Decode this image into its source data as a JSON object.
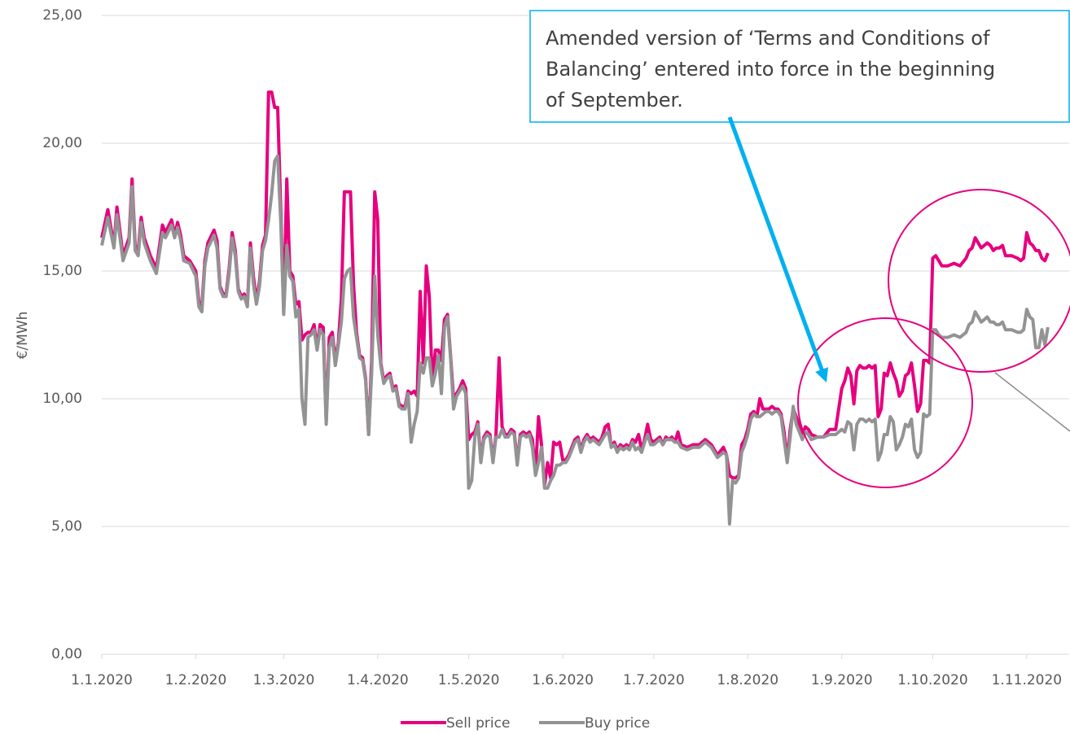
{
  "chart_data": {
    "type": "line",
    "y_label": "€/MWh",
    "annotation": [
      "Amended version of ‘Terms and Conditions of",
      "Balancing’ entered into force in the beginning",
      "of September."
    ],
    "ylim": [
      0,
      25
    ],
    "yticks": [
      {
        "value": 0,
        "label": "0,00"
      },
      {
        "value": 5,
        "label": "5,00"
      },
      {
        "value": 10,
        "label": "10,00"
      },
      {
        "value": 15,
        "label": "15,00"
      },
      {
        "value": 20,
        "label": "20,00"
      },
      {
        "value": 25,
        "label": "25,00"
      }
    ],
    "xlim": [
      "2020-01-01",
      "2020-11-15"
    ],
    "xticks": [
      {
        "value": "2020-01-01",
        "label": "1.1.2020"
      },
      {
        "value": "2020-02-01",
        "label": "1.2.2020"
      },
      {
        "value": "2020-03-01",
        "label": "1.3.2020"
      },
      {
        "value": "2020-04-01",
        "label": "1.4.2020"
      },
      {
        "value": "2020-05-01",
        "label": "1.5.2020"
      },
      {
        "value": "2020-06-01",
        "label": "1.6.2020"
      },
      {
        "value": "2020-07-01",
        "label": "1.7.2020"
      },
      {
        "value": "2020-08-01",
        "label": "1.8.2020"
      },
      {
        "value": "2020-09-01",
        "label": "1.9.2020"
      },
      {
        "value": "2020-10-01",
        "label": "1.10.2020"
      },
      {
        "value": "2020-11-01",
        "label": "1.11.2020"
      }
    ],
    "grid": true,
    "legend": "bottom",
    "x": [
      "2020-01-01",
      "2020-01-03",
      "2020-01-05",
      "2020-01-06",
      "2020-01-08",
      "2020-01-10",
      "2020-01-11",
      "2020-01-12",
      "2020-01-13",
      "2020-01-14",
      "2020-01-15",
      "2020-01-17",
      "2020-01-19",
      "2020-01-21",
      "2020-01-22",
      "2020-01-24",
      "2020-01-25",
      "2020-01-26",
      "2020-01-27",
      "2020-01-28",
      "2020-01-30",
      "2020-02-01",
      "2020-02-02",
      "2020-02-03",
      "2020-02-04",
      "2020-02-05",
      "2020-02-07",
      "2020-02-08",
      "2020-02-09",
      "2020-02-10",
      "2020-02-11",
      "2020-02-12",
      "2020-02-13",
      "2020-02-14",
      "2020-02-15",
      "2020-02-16",
      "2020-02-17",
      "2020-02-18",
      "2020-02-19",
      "2020-02-20",
      "2020-02-21",
      "2020-02-22",
      "2020-02-23",
      "2020-02-24",
      "2020-02-25",
      "2020-02-26",
      "2020-02-27",
      "2020-02-28",
      "2020-02-29",
      "2020-03-01",
      "2020-03-02",
      "2020-03-03",
      "2020-03-04",
      "2020-03-05",
      "2020-03-06",
      "2020-03-07",
      "2020-03-08",
      "2020-03-09",
      "2020-03-10",
      "2020-03-11",
      "2020-03-12",
      "2020-03-13",
      "2020-03-14",
      "2020-03-15",
      "2020-03-16",
      "2020-03-17",
      "2020-03-18",
      "2020-03-19",
      "2020-03-20",
      "2020-03-21",
      "2020-03-22",
      "2020-03-23",
      "2020-03-24",
      "2020-03-25",
      "2020-03-26",
      "2020-03-27",
      "2020-03-28",
      "2020-03-29",
      "2020-03-30",
      "2020-03-31",
      "2020-04-01",
      "2020-04-02",
      "2020-04-03",
      "2020-04-04",
      "2020-04-05",
      "2020-04-06",
      "2020-04-07",
      "2020-04-08",
      "2020-04-09",
      "2020-04-10",
      "2020-04-11",
      "2020-04-12",
      "2020-04-13",
      "2020-04-14",
      "2020-04-15",
      "2020-04-16",
      "2020-04-17",
      "2020-04-18",
      "2020-04-19",
      "2020-04-20",
      "2020-04-21",
      "2020-04-22",
      "2020-04-23",
      "2020-04-24",
      "2020-04-25",
      "2020-04-26",
      "2020-04-27",
      "2020-04-28",
      "2020-04-29",
      "2020-04-30",
      "2020-05-01",
      "2020-05-02",
      "2020-05-03",
      "2020-05-04",
      "2020-05-05",
      "2020-05-06",
      "2020-05-07",
      "2020-05-08",
      "2020-05-09",
      "2020-05-10",
      "2020-05-11",
      "2020-05-12",
      "2020-05-13",
      "2020-05-14",
      "2020-05-15",
      "2020-05-16",
      "2020-05-17",
      "2020-05-18",
      "2020-05-19",
      "2020-05-20",
      "2020-05-21",
      "2020-05-22",
      "2020-05-23",
      "2020-05-24",
      "2020-05-25",
      "2020-05-26",
      "2020-05-27",
      "2020-05-28",
      "2020-05-29",
      "2020-05-30",
      "2020-05-31",
      "2020-06-01",
      "2020-06-02",
      "2020-06-03",
      "2020-06-05",
      "2020-06-06",
      "2020-06-07",
      "2020-06-08",
      "2020-06-09",
      "2020-06-10",
      "2020-06-11",
      "2020-06-12",
      "2020-06-13",
      "2020-06-14",
      "2020-06-15",
      "2020-06-16",
      "2020-06-17",
      "2020-06-18",
      "2020-06-19",
      "2020-06-20",
      "2020-06-21",
      "2020-06-22",
      "2020-06-23",
      "2020-06-24",
      "2020-06-25",
      "2020-06-26",
      "2020-06-27",
      "2020-06-28",
      "2020-06-29",
      "2020-06-30",
      "2020-07-01",
      "2020-07-02",
      "2020-07-03",
      "2020-07-04",
      "2020-07-05",
      "2020-07-06",
      "2020-07-07",
      "2020-07-08",
      "2020-07-09",
      "2020-07-10",
      "2020-07-12",
      "2020-07-14",
      "2020-07-16",
      "2020-07-18",
      "2020-07-20",
      "2020-07-22",
      "2020-07-24",
      "2020-07-25",
      "2020-07-26",
      "2020-07-27",
      "2020-07-28",
      "2020-07-29",
      "2020-07-30",
      "2020-07-31",
      "2020-08-01",
      "2020-08-02",
      "2020-08-03",
      "2020-08-04",
      "2020-08-05",
      "2020-08-06",
      "2020-08-07",
      "2020-08-08",
      "2020-08-09",
      "2020-08-10",
      "2020-08-11",
      "2020-08-12",
      "2020-08-13",
      "2020-08-14",
      "2020-08-15",
      "2020-08-16",
      "2020-08-17",
      "2020-08-18",
      "2020-08-19",
      "2020-08-20",
      "2020-08-21",
      "2020-08-22",
      "2020-08-24",
      "2020-08-26",
      "2020-08-28",
      "2020-08-30",
      "2020-09-01",
      "2020-09-02",
      "2020-09-03",
      "2020-09-04",
      "2020-09-05",
      "2020-09-06",
      "2020-09-07",
      "2020-09-08",
      "2020-09-09",
      "2020-09-10",
      "2020-09-11",
      "2020-09-12",
      "2020-09-13",
      "2020-09-14",
      "2020-09-15",
      "2020-09-16",
      "2020-09-17",
      "2020-09-18",
      "2020-09-19",
      "2020-09-20",
      "2020-09-21",
      "2020-09-22",
      "2020-09-23",
      "2020-09-24",
      "2020-09-25",
      "2020-09-26",
      "2020-09-27",
      "2020-09-28",
      "2020-09-29",
      "2020-09-30",
      "2020-10-01",
      "2020-10-02",
      "2020-10-03",
      "2020-10-04",
      "2020-10-06",
      "2020-10-08",
      "2020-10-10",
      "2020-10-12",
      "2020-10-13",
      "2020-10-14",
      "2020-10-15",
      "2020-10-16",
      "2020-10-17",
      "2020-10-18",
      "2020-10-19",
      "2020-10-20",
      "2020-10-21",
      "2020-10-22",
      "2020-10-23",
      "2020-10-24",
      "2020-10-25",
      "2020-10-27",
      "2020-10-29",
      "2020-10-30",
      "2020-10-31",
      "2020-11-01",
      "2020-11-02",
      "2020-11-03",
      "2020-11-04",
      "2020-11-05",
      "2020-11-06",
      "2020-11-07",
      "2020-11-08"
    ],
    "series": [
      {
        "name": "Sell price",
        "color": "#e6007e",
        "values": [
          16.3,
          17.4,
          16.0,
          17.5,
          15.6,
          16.3,
          18.6,
          16.0,
          15.8,
          17.1,
          16.3,
          15.6,
          15.1,
          16.8,
          16.5,
          17.0,
          16.4,
          16.9,
          16.4,
          15.6,
          15.4,
          15.0,
          13.8,
          13.6,
          15.4,
          16.1,
          16.6,
          16.2,
          14.4,
          14.1,
          14.1,
          15.1,
          16.5,
          15.8,
          14.3,
          14.0,
          14.1,
          13.7,
          16.1,
          14.8,
          13.8,
          14.6,
          16.0,
          16.4,
          22.0,
          22.0,
          21.4,
          21.4,
          17.5,
          13.4,
          18.6,
          15.0,
          14.8,
          13.7,
          13.8,
          12.3,
          12.5,
          12.6,
          12.6,
          12.9,
          12.0,
          12.9,
          12.8,
          9.1,
          12.4,
          12.6,
          11.5,
          12.2,
          13.9,
          18.1,
          18.1,
          18.1,
          14.5,
          12.6,
          11.7,
          11.6,
          10.8,
          8.6,
          11.5,
          18.1,
          17.0,
          11.4,
          10.7,
          10.9,
          11.0,
          10.4,
          10.5,
          9.8,
          9.7,
          9.7,
          10.3,
          10.2,
          10.3,
          10.1,
          14.2,
          11.4,
          15.2,
          14.0,
          10.6,
          11.9,
          11.9,
          11.5,
          13.1,
          13.3,
          11.7,
          10.0,
          10.2,
          10.4,
          10.7,
          10.4,
          8.4,
          8.6,
          8.7,
          9.1,
          7.6,
          8.5,
          8.7,
          8.6,
          7.6,
          8.6,
          11.6,
          8.9,
          8.6,
          8.6,
          8.8,
          8.7,
          7.5,
          8.6,
          8.7,
          8.6,
          8.7,
          8.4,
          7.1,
          9.3,
          8.2,
          6.6,
          7.5,
          6.9,
          8.3,
          8.2,
          8.3,
          7.6,
          7.6,
          7.8,
          8.4,
          8.5,
          8.0,
          8.4,
          8.6,
          8.4,
          8.5,
          8.4,
          8.3,
          8.5,
          8.9,
          9.0,
          8.1,
          8.3,
          8.0,
          8.2,
          8.1,
          8.2,
          8.1,
          8.4,
          8.3,
          8.6,
          8.0,
          8.4,
          9.0,
          8.4,
          8.3,
          8.4,
          8.5,
          8.2,
          8.5,
          8.4,
          8.5,
          8.3,
          8.7,
          8.2,
          8.1,
          8.2,
          8.2,
          8.4,
          8.2,
          7.8,
          8.1,
          7.8,
          7.0,
          6.9,
          6.9,
          7.0,
          8.2,
          8.4,
          8.8,
          9.4,
          9.5,
          9.3,
          10.0,
          9.6,
          9.6,
          9.6,
          9.7,
          9.6,
          9.6,
          9.4,
          8.7,
          7.6,
          8.8,
          9.6,
          9.3,
          8.9,
          8.6,
          8.9,
          8.8,
          8.6,
          8.5,
          8.5,
          8.8,
          8.8,
          10.4,
          10.7,
          11.2,
          10.9,
          9.8,
          11.1,
          11.3,
          11.2,
          11.2,
          11.3,
          11.2,
          11.3,
          9.3,
          9.6,
          11.0,
          10.9,
          11.4,
          11.0,
          10.7,
          10.1,
          10.3,
          10.9,
          11.0,
          11.4,
          10.5,
          9.5,
          9.8,
          11.5,
          11.5,
          11.4,
          15.5,
          15.6,
          15.4,
          15.2,
          15.2,
          15.3,
          15.2,
          15.5,
          15.8,
          15.9,
          16.3,
          16.1,
          15.9,
          16.0,
          16.1,
          16.0,
          15.8,
          15.9,
          15.9,
          16.0,
          15.6,
          15.6,
          15.5,
          15.4,
          15.5,
          16.5,
          16.1,
          16.0,
          15.8,
          15.8,
          15.5,
          15.4,
          15.7
        ]
      },
      {
        "name": "Buy price",
        "color": "#939393",
        "values": [
          16.0,
          17.1,
          15.9,
          17.2,
          15.4,
          16.1,
          18.3,
          15.8,
          15.6,
          16.9,
          16.1,
          15.4,
          14.9,
          16.5,
          16.3,
          16.8,
          16.3,
          16.7,
          16.2,
          15.4,
          15.3,
          14.8,
          13.6,
          13.4,
          15.2,
          15.9,
          16.4,
          15.9,
          14.3,
          14.0,
          14.0,
          14.9,
          16.3,
          15.6,
          14.2,
          13.9,
          14.0,
          13.6,
          15.9,
          14.5,
          13.7,
          14.4,
          15.8,
          16.2,
          17.0,
          18.0,
          19.3,
          19.5,
          17.0,
          13.3,
          16.0,
          14.8,
          14.6,
          13.2,
          13.5,
          10.0,
          9.0,
          12.4,
          12.5,
          12.7,
          11.9,
          12.7,
          12.5,
          9.0,
          12.0,
          12.4,
          11.3,
          12.1,
          13.0,
          14.7,
          15.0,
          15.1,
          13.2,
          12.4,
          11.6,
          11.5,
          10.7,
          8.6,
          11.0,
          14.8,
          12.5,
          11.3,
          10.6,
          10.8,
          10.9,
          10.3,
          10.4,
          9.7,
          9.6,
          9.6,
          10.2,
          8.3,
          9.0,
          9.5,
          11.4,
          11.0,
          11.6,
          11.6,
          10.5,
          11.0,
          11.7,
          10.2,
          12.8,
          13.2,
          11.6,
          9.6,
          10.1,
          10.3,
          10.5,
          10.2,
          6.5,
          6.8,
          8.5,
          9.0,
          7.5,
          8.4,
          8.6,
          8.5,
          7.5,
          8.5,
          8.5,
          8.8,
          8.5,
          8.5,
          8.7,
          8.6,
          7.4,
          8.5,
          8.6,
          8.5,
          8.6,
          8.1,
          7.0,
          7.5,
          8.1,
          6.5,
          6.5,
          6.8,
          7.0,
          7.4,
          7.4,
          7.5,
          7.5,
          7.7,
          8.3,
          8.4,
          7.9,
          8.3,
          8.5,
          8.3,
          8.4,
          8.3,
          8.2,
          8.4,
          8.6,
          8.7,
          8.1,
          8.2,
          7.9,
          8.1,
          8.0,
          8.1,
          8.0,
          8.3,
          8.0,
          8.1,
          7.9,
          8.3,
          8.6,
          8.2,
          8.2,
          8.3,
          8.4,
          8.2,
          8.4,
          8.4,
          8.4,
          8.3,
          8.3,
          8.1,
          8.0,
          8.1,
          8.1,
          8.3,
          8.1,
          7.7,
          7.9,
          7.8,
          5.1,
          6.8,
          6.7,
          6.9,
          7.9,
          8.2,
          8.6,
          9.2,
          9.4,
          9.3,
          9.3,
          9.4,
          9.5,
          9.5,
          9.4,
          9.5,
          9.5,
          9.3,
          8.4,
          7.5,
          8.5,
          9.7,
          9.0,
          8.7,
          8.4,
          8.7,
          8.6,
          8.4,
          8.5,
          8.5,
          8.6,
          8.6,
          8.8,
          8.7,
          9.1,
          9.0,
          8.0,
          9.0,
          9.2,
          9.2,
          9.1,
          9.2,
          9.1,
          9.2,
          7.6,
          7.9,
          8.6,
          8.6,
          9.3,
          9.1,
          8.0,
          8.2,
          8.5,
          9.0,
          8.9,
          9.2,
          8.0,
          7.7,
          7.9,
          9.4,
          9.3,
          9.4,
          12.7,
          12.7,
          12.5,
          12.4,
          12.4,
          12.5,
          12.4,
          12.6,
          12.9,
          13.0,
          13.4,
          13.2,
          13.0,
          13.1,
          13.2,
          13.0,
          13.0,
          12.9,
          12.9,
          13.0,
          12.7,
          12.7,
          12.6,
          12.6,
          12.7,
          13.5,
          13.2,
          13.1,
          12.0,
          12.0,
          12.7,
          12.1,
          12.8
        ]
      }
    ]
  }
}
